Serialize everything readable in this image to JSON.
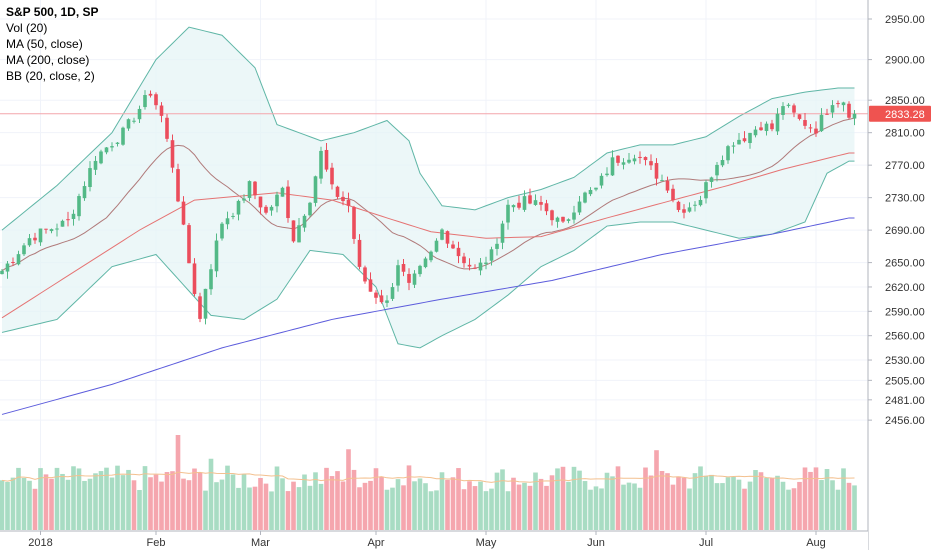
{
  "legend": {
    "title": "S&P 500, 1D, SP",
    "vol": "Vol (20)",
    "ma50": "MA (50, close)",
    "ma200": "MA (200, close)",
    "bb": "BB (20, close, 2)"
  },
  "chart_data": {
    "type": "candlestick",
    "price_axis": {
      "ticks": [
        2950,
        2900,
        2850,
        2810,
        2770,
        2730,
        2690,
        2650,
        2620,
        2590,
        2560,
        2530,
        2505,
        2481,
        2456
      ],
      "tick_labels": [
        "2950.00",
        "2900.00",
        "2850.00",
        "2810.00",
        "2770.00",
        "2730.00",
        "2690.00",
        "2650.00",
        "2620.00",
        "2590.00",
        "2560.00",
        "2530.00",
        "2505.00",
        "2481.00",
        "2456.00"
      ],
      "last_price": 2833.28,
      "last_price_label": "2833.28"
    },
    "time_axis": {
      "labels": [
        {
          "label": "2018",
          "index": 7
        },
        {
          "label": "Feb",
          "index": 28
        },
        {
          "label": "Mar",
          "index": 47
        },
        {
          "label": "Apr",
          "index": 68
        },
        {
          "label": "May",
          "index": 88
        },
        {
          "label": "Jun",
          "index": 108
        },
        {
          "label": "Jul",
          "index": 128
        },
        {
          "label": "Aug",
          "index": 148
        }
      ]
    },
    "price_keypoints": [
      [
        0,
        2640
      ],
      [
        5,
        2680
      ],
      [
        8,
        2690
      ],
      [
        12,
        2700
      ],
      [
        17,
        2780
      ],
      [
        22,
        2810
      ],
      [
        27,
        2860
      ],
      [
        29,
        2830
      ],
      [
        31,
        2770
      ],
      [
        34,
        2650
      ],
      [
        36,
        2580
      ],
      [
        37,
        2620
      ],
      [
        40,
        2700
      ],
      [
        43,
        2720
      ],
      [
        45,
        2745
      ],
      [
        48,
        2710
      ],
      [
        51,
        2740
      ],
      [
        53,
        2680
      ],
      [
        56,
        2730
      ],
      [
        58,
        2785
      ],
      [
        60,
        2740
      ],
      [
        63,
        2720
      ],
      [
        65,
        2640
      ],
      [
        67,
        2615
      ],
      [
        70,
        2600
      ],
      [
        72,
        2650
      ],
      [
        74,
        2620
      ],
      [
        78,
        2660
      ],
      [
        80,
        2690
      ],
      [
        83,
        2660
      ],
      [
        86,
        2640
      ],
      [
        89,
        2660
      ],
      [
        92,
        2720
      ],
      [
        95,
        2725
      ],
      [
        98,
        2720
      ],
      [
        102,
        2695
      ],
      [
        105,
        2730
      ],
      [
        108,
        2740
      ],
      [
        111,
        2775
      ],
      [
        115,
        2785
      ],
      [
        118,
        2765
      ],
      [
        121,
        2745
      ],
      [
        123,
        2715
      ],
      [
        125,
        2720
      ],
      [
        127,
        2730
      ],
      [
        130,
        2775
      ],
      [
        133,
        2800
      ],
      [
        135,
        2805
      ],
      [
        138,
        2820
      ],
      [
        140,
        2815
      ],
      [
        142,
        2845
      ],
      [
        145,
        2825
      ],
      [
        148,
        2815
      ],
      [
        151,
        2850
      ],
      [
        153,
        2850
      ],
      [
        154,
        2835
      ]
    ],
    "ma50_keypoints": [
      [
        0,
        2582
      ],
      [
        25,
        2690
      ],
      [
        35,
        2727
      ],
      [
        50,
        2736
      ],
      [
        60,
        2727
      ],
      [
        70,
        2705
      ],
      [
        78,
        2688
      ],
      [
        88,
        2680
      ],
      [
        98,
        2682
      ],
      [
        110,
        2705
      ],
      [
        122,
        2727
      ],
      [
        132,
        2745
      ],
      [
        142,
        2765
      ],
      [
        154,
        2785
      ]
    ],
    "ma200_keypoints": [
      [
        0,
        2463
      ],
      [
        20,
        2500
      ],
      [
        40,
        2545
      ],
      [
        60,
        2580
      ],
      [
        80,
        2605
      ],
      [
        100,
        2628
      ],
      [
        120,
        2660
      ],
      [
        140,
        2685
      ],
      [
        154,
        2705
      ]
    ],
    "bb_upper_keypoints": [
      [
        0,
        2690
      ],
      [
        10,
        2745
      ],
      [
        20,
        2810
      ],
      [
        28,
        2900
      ],
      [
        34,
        2940
      ],
      [
        40,
        2930
      ],
      [
        46,
        2890
      ],
      [
        50,
        2820
      ],
      [
        58,
        2800
      ],
      [
        64,
        2810
      ],
      [
        70,
        2825
      ],
      [
        74,
        2800
      ],
      [
        76,
        2760
      ],
      [
        80,
        2720
      ],
      [
        86,
        2715
      ],
      [
        92,
        2730
      ],
      [
        98,
        2740
      ],
      [
        104,
        2755
      ],
      [
        110,
        2785
      ],
      [
        116,
        2795
      ],
      [
        122,
        2795
      ],
      [
        128,
        2805
      ],
      [
        134,
        2830
      ],
      [
        140,
        2852
      ],
      [
        146,
        2860
      ],
      [
        152,
        2865
      ],
      [
        154,
        2865
      ]
    ],
    "bb_lower_keypoints": [
      [
        0,
        2564
      ],
      [
        10,
        2580
      ],
      [
        20,
        2645
      ],
      [
        28,
        2660
      ],
      [
        34,
        2615
      ],
      [
        38,
        2585
      ],
      [
        44,
        2580
      ],
      [
        50,
        2605
      ],
      [
        56,
        2665
      ],
      [
        62,
        2660
      ],
      [
        68,
        2620
      ],
      [
        72,
        2550
      ],
      [
        76,
        2545
      ],
      [
        80,
        2560
      ],
      [
        86,
        2580
      ],
      [
        92,
        2610
      ],
      [
        98,
        2645
      ],
      [
        104,
        2665
      ],
      [
        110,
        2695
      ],
      [
        116,
        2700
      ],
      [
        122,
        2700
      ],
      [
        128,
        2690
      ],
      [
        134,
        2680
      ],
      [
        140,
        2685
      ],
      [
        146,
        2700
      ],
      [
        150,
        2760
      ],
      [
        154,
        2775
      ]
    ],
    "volume": {
      "max": 100,
      "base": 40,
      "amplitude": 28,
      "spikes": [
        [
          32,
          100
        ],
        [
          38,
          75
        ],
        [
          61,
          62
        ],
        [
          63,
          85
        ],
        [
          74,
          68
        ],
        [
          119,
          84
        ],
        [
          124,
          55
        ],
        [
          129,
          58
        ],
        [
          134,
          53
        ]
      ]
    },
    "colors": {
      "up": "#53b987",
      "down": "#eb4d5c",
      "vol_up": "#a8dcc3",
      "vol_down": "#f5a6ae",
      "ma50": "#e57373",
      "ma200": "#5c5cdc",
      "bb_line": "#5fb6a6",
      "bb_fill": "#e6f4f6",
      "last_price_line": "#f4a6ac",
      "last_price_tag": "#ef5350",
      "vol_ma": "#f3c08f",
      "grid": "#f0f3fa",
      "axis_text": "#333333"
    }
  }
}
